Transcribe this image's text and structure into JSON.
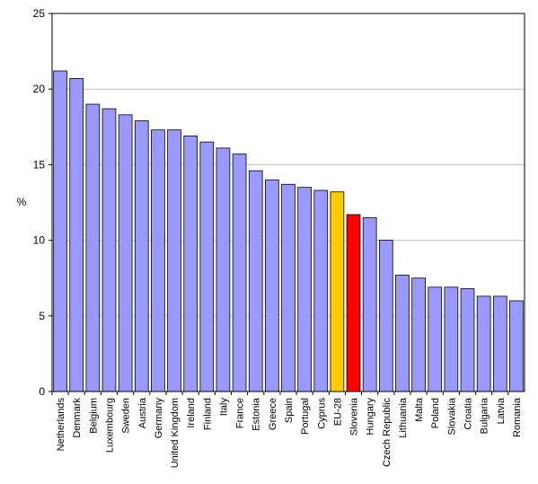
{
  "chart_data": {
    "type": "bar",
    "title": "",
    "xlabel": "",
    "ylabel": "%",
    "ylim": [
      0,
      25
    ],
    "yticks": [
      0,
      5,
      10,
      15,
      20,
      25
    ],
    "grid": true,
    "categories": [
      "Netherlands",
      "Denmark",
      "Belgium",
      "Luxembourg",
      "Sweden",
      "Austria",
      "Germany",
      "United Kingdom",
      "Ireland",
      "Finland",
      "Italy",
      "France",
      "Estonia",
      "Greece",
      "Spain",
      "Portugal",
      "Cyprus",
      "EU-28",
      "Slovenia",
      "Hungary",
      "Czech Republic",
      "Lithuania",
      "Malta",
      "Poland",
      "Slovakia",
      "Croatia",
      "Bulgaria",
      "Latvia",
      "Romania"
    ],
    "values": [
      21.2,
      20.7,
      19.0,
      18.7,
      18.3,
      17.9,
      17.3,
      17.3,
      16.9,
      16.5,
      16.1,
      15.7,
      14.6,
      14.0,
      13.7,
      13.5,
      13.3,
      13.2,
      11.7,
      11.5,
      10.0,
      7.7,
      7.5,
      6.9,
      6.9,
      6.8,
      6.3,
      6.3,
      6.0
    ],
    "colors": {
      "default": "#9999ff",
      "EU-28": "#ffcc00",
      "Slovenia": "#ff0000",
      "grid": "#c0c0c0",
      "axis": "#000000"
    }
  }
}
